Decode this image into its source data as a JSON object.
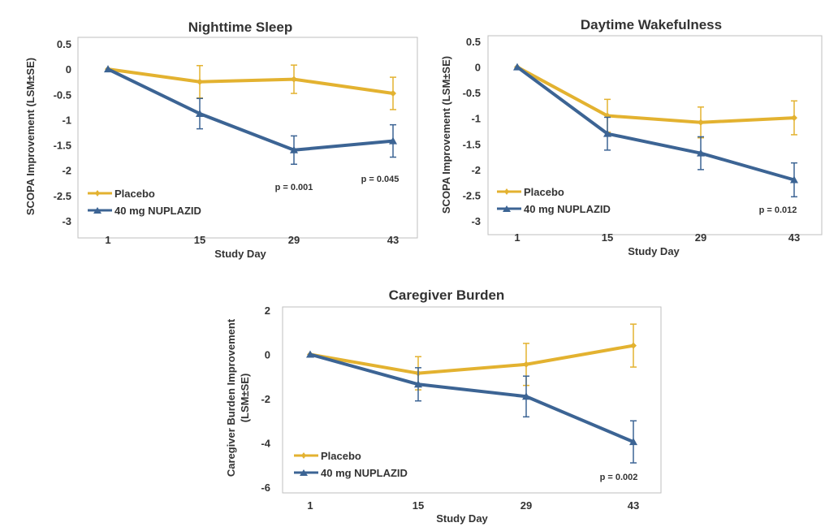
{
  "colors": {
    "placebo": "#E3B230",
    "nuplazid": "#3C6494",
    "frame": "#bfbfbf",
    "text": "#333333"
  },
  "legend": {
    "placebo": "Placebo",
    "nuplazid": "40 mg NUPLAZID"
  },
  "chart_data": [
    {
      "id": "nighttime",
      "type": "line",
      "title": "Nighttime Sleep",
      "xlabel": "Study Day",
      "ylabel": "SCOPA Improvement (LSM±SE)",
      "categories": [
        "1",
        "15",
        "29",
        "43"
      ],
      "ylim": [
        -3,
        0.5
      ],
      "yticks": [
        0.5,
        0,
        -0.5,
        -1,
        -1.5,
        -2,
        -2.5,
        -3
      ],
      "ytick_labels": [
        "0.5",
        "0",
        "-0.5",
        "-1",
        "-1.5",
        "-2",
        "-2.5",
        "-3"
      ],
      "legend_position": "bottom-left",
      "series": [
        {
          "name": "Placebo",
          "marker": "diamond",
          "values": [
            0,
            -0.25,
            -0.2,
            -0.48
          ],
          "se": [
            0,
            0.32,
            0.28,
            0.32
          ]
        },
        {
          "name": "40 mg NUPLAZID",
          "marker": "triangle",
          "values": [
            0,
            -0.88,
            -1.6,
            -1.42
          ],
          "se": [
            0,
            0.3,
            0.28,
            0.32
          ]
        }
      ],
      "annotations": [
        {
          "text": "p = 0.001",
          "category": "29"
        },
        {
          "text": "p = 0.045",
          "category": "43"
        }
      ]
    },
    {
      "id": "daytime",
      "type": "line",
      "title": "Daytime Wakefulness",
      "xlabel": "Study Day",
      "ylabel": "SCOPA Improvement (LSM±SE)",
      "categories": [
        "1",
        "15",
        "29",
        "43"
      ],
      "ylim": [
        -3,
        0.5
      ],
      "yticks": [
        0.5,
        0,
        -0.5,
        -1,
        -1.5,
        -2,
        -2.5,
        -3
      ],
      "ytick_labels": [
        "0.5",
        "0",
        "-0.5",
        "-1",
        "-1.5",
        "-2",
        "-2.5",
        "-3"
      ],
      "legend_position": "bottom-left",
      "series": [
        {
          "name": "Placebo",
          "marker": "diamond",
          "values": [
            0,
            -0.95,
            -1.08,
            -0.99
          ],
          "se": [
            0,
            0.32,
            0.3,
            0.33
          ]
        },
        {
          "name": "40 mg NUPLAZID",
          "marker": "triangle",
          "values": [
            0,
            -1.3,
            -1.68,
            -2.2
          ],
          "se": [
            0,
            0.32,
            0.32,
            0.33
          ]
        }
      ],
      "annotations": [
        {
          "text": "p = 0.012",
          "category": "43"
        }
      ]
    },
    {
      "id": "caregiver",
      "type": "line",
      "title": "Caregiver Burden",
      "xlabel": "Study Day",
      "ylabel": "Caregiver Burden Improvement (LSM±SE)",
      "categories": [
        "1",
        "15",
        "29",
        "43"
      ],
      "ylim": [
        -6,
        2
      ],
      "yticks": [
        2,
        0,
        -2,
        -4,
        -6
      ],
      "ytick_labels": [
        "2",
        "0",
        "-2",
        "-4",
        "-6"
      ],
      "legend_position": "bottom-left",
      "series": [
        {
          "name": "Placebo",
          "marker": "diamond",
          "values": [
            0,
            -0.85,
            -0.45,
            0.4
          ],
          "se": [
            0,
            0.75,
            0.95,
            0.97
          ]
        },
        {
          "name": "40 mg NUPLAZID",
          "marker": "triangle",
          "values": [
            0,
            -1.35,
            -1.9,
            -3.95
          ],
          "se": [
            0,
            0.75,
            0.92,
            0.95
          ]
        }
      ],
      "annotations": [
        {
          "text": "p = 0.002",
          "category": "43"
        }
      ]
    }
  ]
}
